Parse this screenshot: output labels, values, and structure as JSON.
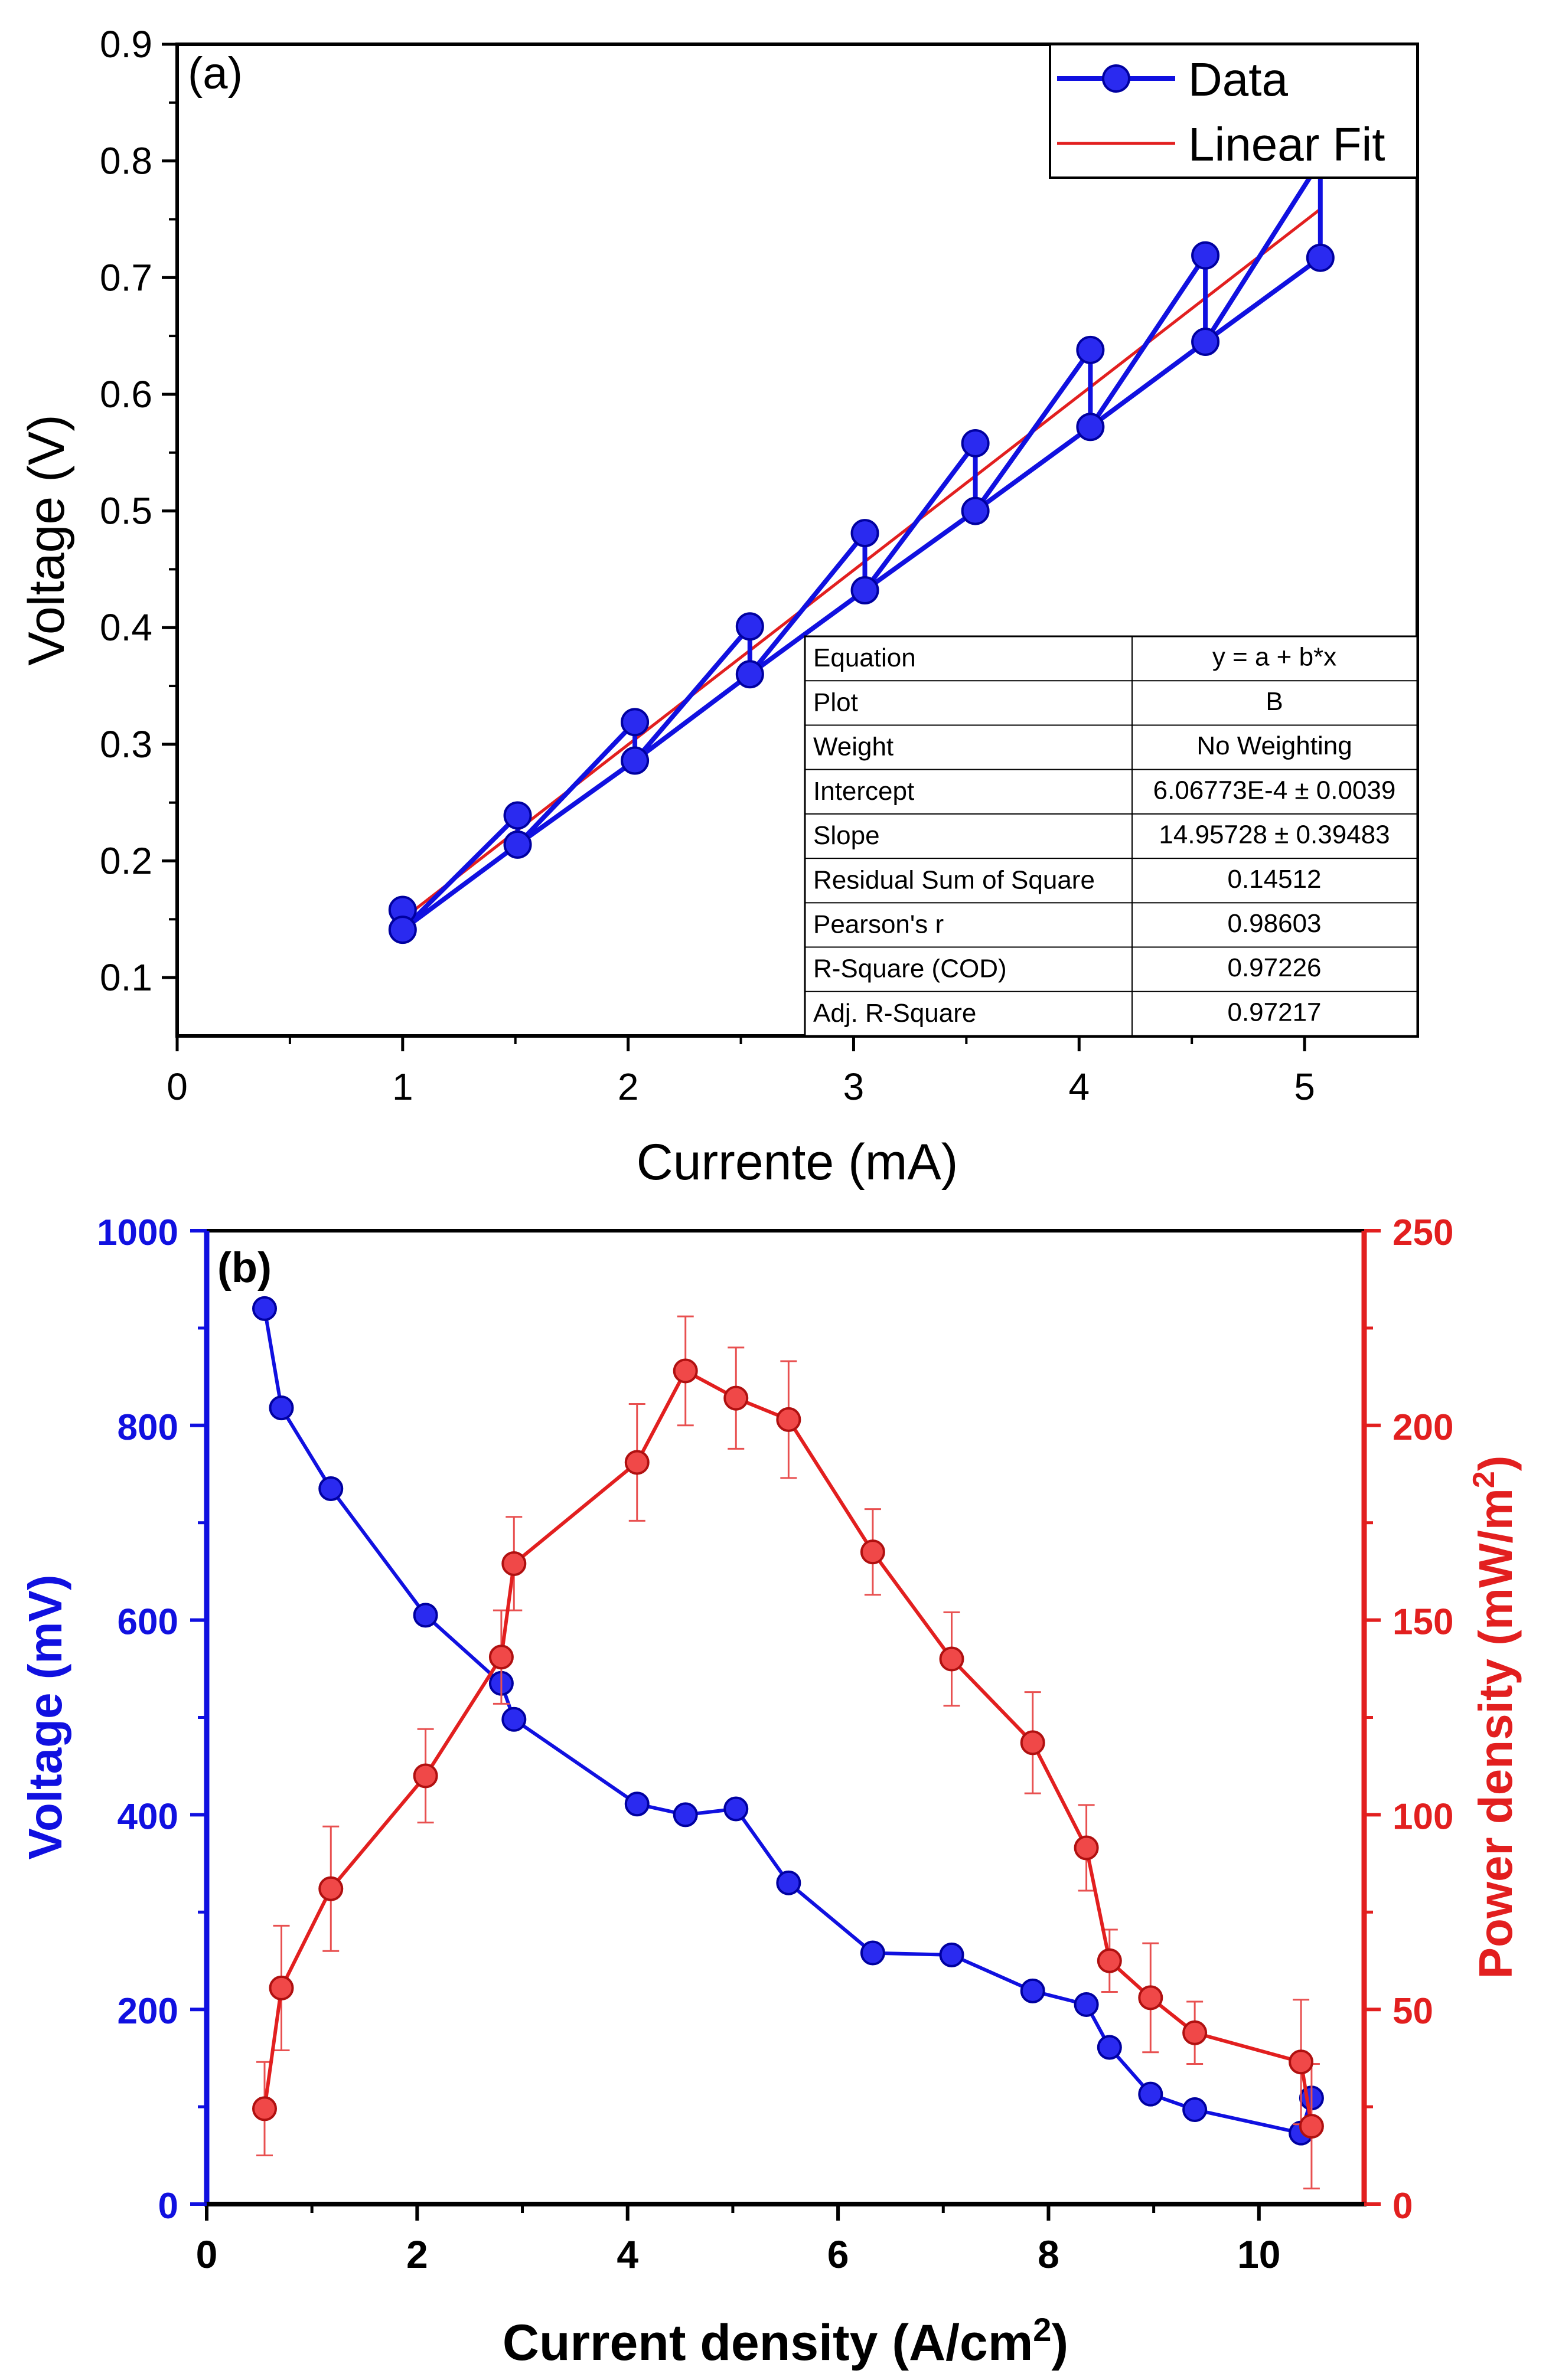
{
  "chart_data": [
    {
      "panel": "(a)",
      "type": "line",
      "xlabel": "Currente (mA)",
      "ylabel": "Voltage (V)",
      "xlim": [
        0,
        5.5
      ],
      "ylim": [
        0.05,
        0.9
      ],
      "xticks": [
        "0",
        "1",
        "2",
        "3",
        "4",
        "5"
      ],
      "yticks": [
        "0.1",
        "0.2",
        "0.3",
        "0.4",
        "0.5",
        "0.6",
        "0.7",
        "0.8",
        "0.9"
      ],
      "legend": {
        "placement": "top-right",
        "entries": [
          "Data",
          "Linear Fit"
        ]
      },
      "series": [
        {
          "name": "Data",
          "color": "#1010e0",
          "x": [
            1.0,
            1.0,
            1.51,
            1.51,
            2.03,
            2.03,
            2.54,
            2.54,
            3.05,
            3.05,
            3.54,
            3.54,
            4.05,
            4.05,
            4.56,
            4.56,
            5.07,
            5.07,
            4.56,
            4.05,
            3.54,
            3.05,
            2.54,
            2.03,
            1.51,
            1.0
          ],
          "y": [
            0.158,
            0.141,
            0.239,
            0.214,
            0.319,
            0.286,
            0.401,
            0.36,
            0.481,
            0.432,
            0.558,
            0.5,
            0.638,
            0.572,
            0.719,
            0.645,
            0.717,
            0.8,
            0.645,
            0.572,
            0.5,
            0.432,
            0.36,
            0.286,
            0.214,
            0.141
          ],
          "markers_x": [
            1.0,
            1.0,
            1.51,
            1.51,
            2.03,
            2.03,
            2.54,
            2.54,
            3.05,
            3.05,
            3.54,
            3.54,
            4.05,
            4.05,
            4.56,
            4.56,
            5.07
          ],
          "markers_y": [
            0.158,
            0.141,
            0.239,
            0.214,
            0.319,
            0.286,
            0.401,
            0.36,
            0.481,
            0.432,
            0.558,
            0.5,
            0.638,
            0.572,
            0.719,
            0.645,
            0.717
          ]
        },
        {
          "name": "Linear Fit",
          "color": "#e21f1f",
          "x": [
            1.0,
            5.07
          ],
          "y": [
            0.1502,
            0.7587
          ]
        }
      ],
      "fit_table": {
        "rows": [
          {
            "label": "Equation",
            "value": "y = a + b*x"
          },
          {
            "label": "Plot",
            "value": "B"
          },
          {
            "label": "Weight",
            "value": "No Weighting"
          },
          {
            "label": "Intercept",
            "value": "6.06773E-4 ± 0.0039"
          },
          {
            "label": "Slope",
            "value": "14.95728 ± 0.39483"
          },
          {
            "label": "Residual Sum of Square",
            "value": "0.14512"
          },
          {
            "label": "Pearson's r",
            "value": "0.98603"
          },
          {
            "label": "R-Square (COD)",
            "value": "0.97226"
          },
          {
            "label": "Adj. R-Square",
            "value": "0.97217"
          }
        ]
      }
    },
    {
      "panel": "(b)",
      "type": "line",
      "xlabel": "Current density (A/cm",
      "xlabel_sup": "2",
      "xlabel_end": ")",
      "ylabel_left": "Voltage (mV)",
      "ylabel_right": "Power density (mW/m",
      "ylabel_right_sup": "2",
      "ylabel_right_end": ")",
      "xlim": [
        0,
        11
      ],
      "ylim_left": [
        0,
        1000
      ],
      "ylim_right": [
        0,
        250
      ],
      "xticks": [
        "0",
        "2",
        "4",
        "6",
        "8",
        "10"
      ],
      "yticks_left": [
        "0",
        "200",
        "400",
        "600",
        "800",
        "1000"
      ],
      "yticks_right": [
        "0",
        "50",
        "100",
        "150",
        "200",
        "250"
      ],
      "series": [
        {
          "name": "Voltage",
          "axis": "left",
          "color": "#1010e0",
          "x": [
            0.55,
            0.71,
            1.18,
            2.08,
            2.8,
            2.92,
            4.09,
            4.55,
            5.03,
            5.53,
            6.33,
            7.08,
            7.85,
            8.36,
            8.58,
            8.97,
            9.39,
            10.4,
            10.5
          ],
          "y": [
            920,
            818,
            735,
            605,
            535,
            498,
            411,
            400,
            406,
            330,
            258,
            256,
            219,
            205,
            161,
            113,
            97,
            73,
            109
          ]
        },
        {
          "name": "Power density",
          "axis": "right",
          "color": "#e21f1f",
          "x": [
            0.55,
            0.71,
            1.18,
            2.08,
            2.8,
            2.92,
            4.09,
            4.55,
            5.03,
            5.53,
            6.33,
            7.08,
            7.85,
            8.36,
            8.58,
            8.97,
            9.39,
            10.4,
            10.5
          ],
          "y": [
            24.5,
            55.5,
            81,
            110,
            140.5,
            164.5,
            190.5,
            214,
            207,
            201.5,
            167.5,
            140,
            118.5,
            91.5,
            62.5,
            53,
            44,
            36.5,
            20
          ],
          "err": [
            12,
            16,
            16,
            12,
            12,
            12,
            15,
            14,
            13,
            15,
            11,
            12,
            13,
            11,
            8,
            14,
            8,
            16,
            16
          ]
        }
      ]
    }
  ]
}
